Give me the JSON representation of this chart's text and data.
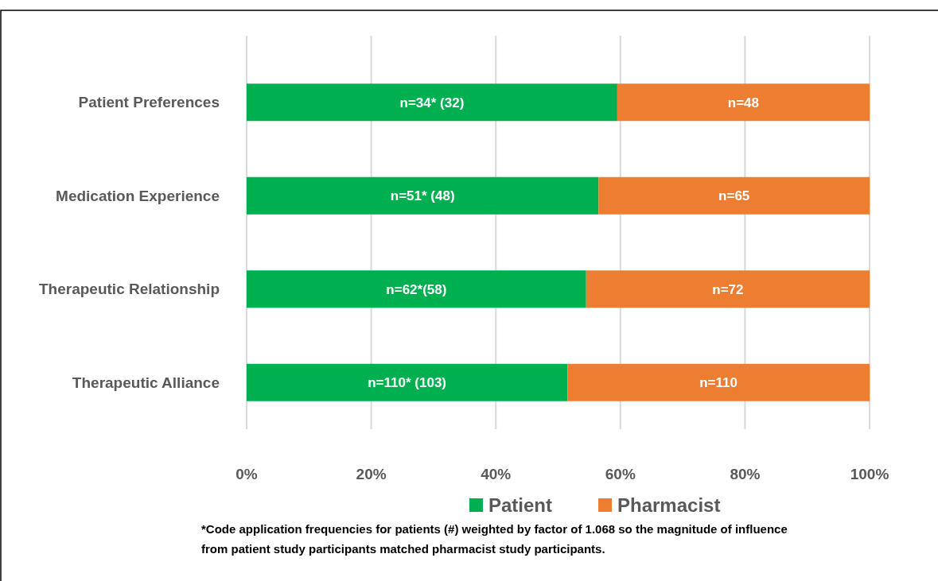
{
  "chart_data": {
    "type": "bar",
    "orientation": "horizontal",
    "stacked": true,
    "categories": [
      "Patient Preferences",
      "Medication Experience",
      "Therapeutic Relationship",
      "Therapeutic Alliance"
    ],
    "series": [
      {
        "name": "Patient",
        "color": "#00b050",
        "values": [
          59.5,
          56.5,
          54.5,
          51.5
        ]
      },
      {
        "name": "Pharmacist",
        "color": "#ed7d31",
        "values": [
          40.5,
          43.5,
          45.5,
          48.5
        ]
      }
    ],
    "xlim": [
      0,
      100
    ],
    "xticks": [
      {
        "value": 0,
        "label": "0%"
      },
      {
        "value": 20,
        "label": "20%"
      },
      {
        "value": 40,
        "label": "40%"
      },
      {
        "value": 60,
        "label": "60%"
      },
      {
        "value": 80,
        "label": "80%"
      },
      {
        "value": 100,
        "label": "100%"
      }
    ],
    "grid": "x",
    "legend": "bottom",
    "annotations": [
      "n=34* (32)",
      "n=48",
      "n=51* (48)",
      "n=65",
      "n=62*(58)",
      "n=72",
      "n=110* (103)",
      "n=110",
      "*Code application frequencies for patients (#) weighted by factor of 1.068 so the magnitude of influence from patient study participants matched pharmacist study participants."
    ]
  }
}
